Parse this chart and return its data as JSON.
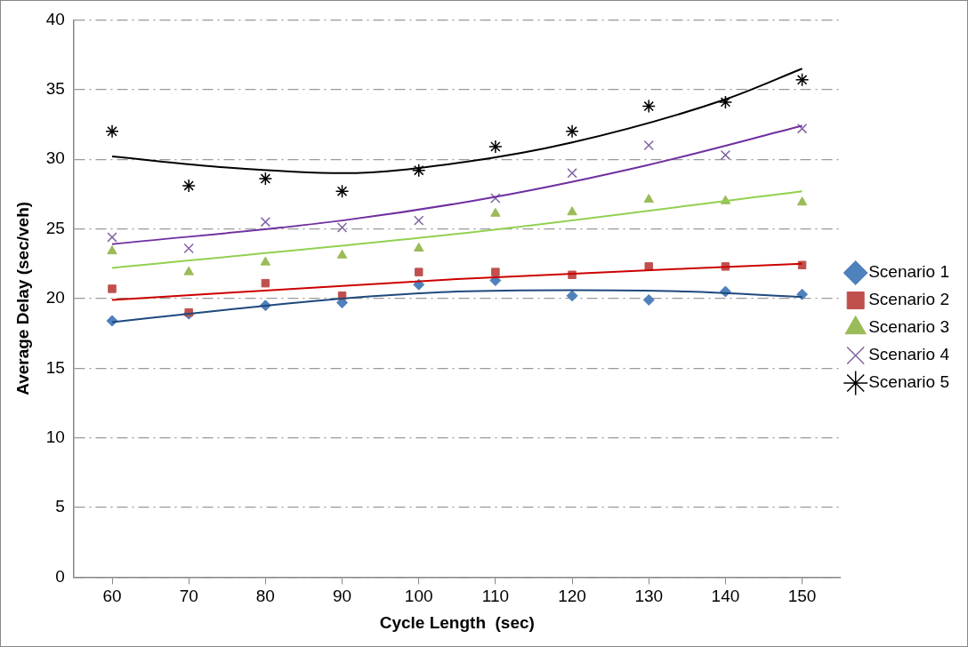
{
  "chart_data": {
    "type": "scatter",
    "xlabel": "Cycle Length  (sec)",
    "ylabel": "Average Delay (sec/veh)",
    "x": [
      60,
      70,
      80,
      90,
      100,
      110,
      120,
      130,
      140,
      150
    ],
    "xlim": [
      55,
      155
    ],
    "xticks": [
      60,
      70,
      80,
      90,
      100,
      110,
      120,
      130,
      140,
      150
    ],
    "ylim": [
      0,
      40
    ],
    "yticks": [
      0,
      5,
      10,
      15,
      20,
      25,
      30,
      35,
      40
    ],
    "grid": "y",
    "legend": "right",
    "series": [
      {
        "name": "Scenario 1",
        "color": "#4f81bd",
        "marker": "diamond",
        "values": [
          18.4,
          18.9,
          19.5,
          19.7,
          21.0,
          21.3,
          20.2,
          19.9,
          20.5,
          20.3
        ]
      },
      {
        "name": "Scenario 2",
        "color": "#c0504d",
        "marker": "square",
        "values": [
          20.7,
          19.0,
          21.1,
          20.2,
          21.9,
          21.9,
          21.7,
          22.3,
          22.3,
          22.4
        ]
      },
      {
        "name": "Scenario 3",
        "color": "#9bbb59",
        "marker": "triangle",
        "values": [
          23.4,
          21.9,
          22.6,
          23.1,
          23.6,
          26.1,
          26.2,
          27.1,
          27.0,
          26.9
        ]
      },
      {
        "name": "Scenario 4",
        "color": "#8064a2",
        "marker": "cross",
        "values": [
          24.4,
          23.6,
          25.5,
          25.1,
          25.6,
          27.2,
          29.0,
          31.0,
          30.3,
          32.2
        ]
      },
      {
        "name": "Scenario 5",
        "color": "#000000",
        "marker": "cross",
        "values": [
          32.0,
          28.1,
          28.6,
          27.7,
          29.2,
          30.9,
          32.0,
          33.8,
          34.1,
          35.7
        ]
      },
      {
        "type": "line",
        "color": "#1f497d",
        "marker": "none",
        "x": [
          60,
          75,
          90,
          105,
          120,
          135,
          150
        ],
        "values": [
          18.3,
          19.2,
          20.0,
          20.5,
          20.6,
          20.5,
          20.1
        ]
      },
      {
        "type": "line",
        "color": "#cc0000",
        "marker": "none",
        "x": [
          60,
          105,
          150
        ],
        "values": [
          19.9,
          21.4,
          22.5
        ]
      },
      {
        "type": "line",
        "color": "#92d050",
        "marker": "none",
        "x": [
          60,
          106,
          150
        ],
        "values": [
          22.2,
          24.7,
          27.7
        ]
      },
      {
        "type": "line",
        "color": "#7030a0",
        "marker": "none",
        "x": [
          60,
          90,
          110,
          130,
          150
        ],
        "values": [
          23.9,
          25.6,
          27.3,
          29.6,
          32.4
        ]
      },
      {
        "type": "line",
        "color": "#000000",
        "marker": "none",
        "x": [
          60,
          75,
          90,
          106,
          120,
          140,
          150
        ],
        "values": [
          30.2,
          29.4,
          29.0,
          29.8,
          31.2,
          34.3,
          36.5
        ]
      }
    ]
  }
}
